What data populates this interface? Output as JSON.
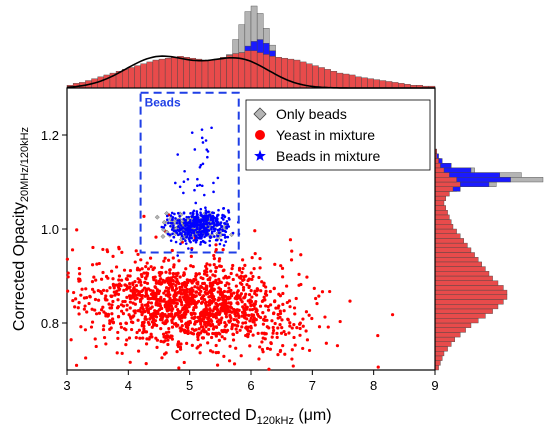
{
  "colors": {
    "yeast": "#ff0000",
    "yeast_fill": "#e84b4b",
    "beads": "#0000ff",
    "beads_fill": "#1a1aff",
    "only_beads": "#b4b4b4",
    "fit_line": "#000000",
    "box": "#1f3fe6"
  },
  "chart_data": {
    "type": "scatter",
    "title": "",
    "xlabel": "Corrected D",
    "xlabel_sub": "120kHz",
    "xlabel_unit": " (μm)",
    "ylabel": "Corrected Opacity",
    "ylabel_sub": "20MHz/120kHz",
    "xlim": [
      3,
      9
    ],
    "ylim": [
      0.7,
      1.3
    ],
    "x_ticks": [
      "3",
      "4",
      "5",
      "6",
      "7",
      "8",
      "9"
    ],
    "y_ticks": [
      "0.8",
      "1.0",
      "1.2"
    ],
    "x_tick_values": [
      3,
      4,
      5,
      6,
      7,
      8,
      9
    ],
    "y_tick_values": [
      0.8,
      1.0,
      1.2
    ],
    "legend_position": "top-right",
    "series": [
      {
        "name": "Only beads",
        "marker": "diamond",
        "color": "#b4b4b4",
        "cluster": {
          "x_center": 5.05,
          "x_sd": 0.22,
          "y_center": 1.005,
          "y_sd": 0.012,
          "count": 180
        }
      },
      {
        "name": "Yeast in mixture",
        "marker": "circle",
        "color": "#ff0000",
        "cluster": {
          "x_center": 5.0,
          "x_sd": 0.85,
          "y_center": 0.84,
          "y_sd": 0.045,
          "count": 1500
        }
      },
      {
        "name": "Beads in mixture",
        "marker": "star",
        "color": "#0000ff",
        "cluster": {
          "x_center": 5.15,
          "x_sd": 0.25,
          "y_center": 1.005,
          "y_sd": 0.018,
          "count": 450
        }
      }
    ],
    "annotation_box": {
      "label": "Beads",
      "x_range": [
        4.2,
        5.8
      ],
      "y_range": [
        0.95,
        1.29
      ]
    },
    "top_histogram": {
      "bin_start": 3.0,
      "bin_width": 0.1,
      "yeast": [
        3,
        5,
        6,
        8,
        10,
        12,
        14,
        16,
        18,
        20,
        22,
        24,
        26,
        28,
        30,
        31,
        32,
        33,
        34,
        33,
        32,
        31,
        30,
        30,
        31,
        33,
        35,
        37,
        38,
        40,
        40,
        38,
        36,
        34,
        33,
        32,
        31,
        30,
        28,
        26,
        24,
        22,
        20,
        18,
        16,
        15,
        14,
        12,
        11,
        10,
        9,
        8,
        7,
        6,
        5,
        4,
        3,
        3,
        2,
        2
      ],
      "beads_mixture": [
        0,
        0,
        0,
        0,
        0,
        0,
        0,
        0,
        0,
        0,
        0,
        0,
        0,
        0,
        0,
        0,
        0,
        0,
        0,
        0,
        0,
        0,
        3,
        6,
        10,
        16,
        22,
        30,
        38,
        45,
        50,
        52,
        48,
        40,
        32,
        22,
        14,
        8,
        4,
        2,
        0,
        0,
        0,
        0,
        0,
        0,
        0,
        0,
        0,
        0,
        0,
        0,
        0,
        0,
        0,
        0,
        0,
        0,
        0,
        0
      ],
      "only_beads": [
        0,
        0,
        0,
        0,
        0,
        0,
        0,
        0,
        0,
        0,
        0,
        0,
        0,
        0,
        0,
        0,
        0,
        0,
        0,
        0,
        0,
        0,
        4,
        8,
        14,
        24,
        36,
        52,
        68,
        82,
        88,
        80,
        64,
        46,
        30,
        18,
        10,
        5,
        2,
        0,
        0,
        0,
        0,
        0,
        0,
        0,
        0,
        0,
        0,
        0,
        0,
        0,
        0,
        0,
        0,
        0,
        0,
        0,
        0,
        0
      ],
      "fit_curve_peaks": [
        {
          "center": 4.5,
          "sd": 0.55,
          "height": 33
        },
        {
          "center": 5.8,
          "sd": 0.5,
          "height": 30
        }
      ]
    },
    "right_histogram": {
      "bin_start": 0.7,
      "bin_width": 0.01,
      "yeast": [
        2,
        3,
        4,
        5,
        7,
        9,
        11,
        14,
        17,
        20,
        24,
        28,
        32,
        35,
        38,
        40,
        40,
        38,
        35,
        32,
        30,
        28,
        26,
        24,
        22,
        20,
        18,
        16,
        14,
        12,
        10,
        9,
        8,
        7,
        6,
        5,
        6,
        8,
        10,
        14,
        12,
        8,
        5,
        3,
        2,
        1,
        1,
        0,
        0,
        0
      ],
      "beads_mixture": [
        0,
        0,
        0,
        0,
        0,
        0,
        0,
        0,
        0,
        0,
        0,
        0,
        0,
        0,
        0,
        0,
        0,
        0,
        0,
        0,
        0,
        0,
        0,
        0,
        0,
        0,
        0,
        0,
        0,
        0,
        0,
        0,
        0,
        0,
        0,
        0,
        2,
        6,
        14,
        30,
        42,
        36,
        20,
        9,
        4,
        2,
        1,
        0,
        0,
        0
      ],
      "only_beads": [
        0,
        0,
        0,
        0,
        0,
        0,
        0,
        0,
        0,
        0,
        0,
        0,
        0,
        0,
        0,
        0,
        0,
        0,
        0,
        0,
        0,
        0,
        0,
        0,
        0,
        0,
        0,
        0,
        0,
        0,
        0,
        0,
        0,
        0,
        0,
        0,
        0,
        4,
        12,
        34,
        60,
        48,
        22,
        8,
        3,
        1,
        0,
        0,
        0,
        0
      ]
    }
  }
}
